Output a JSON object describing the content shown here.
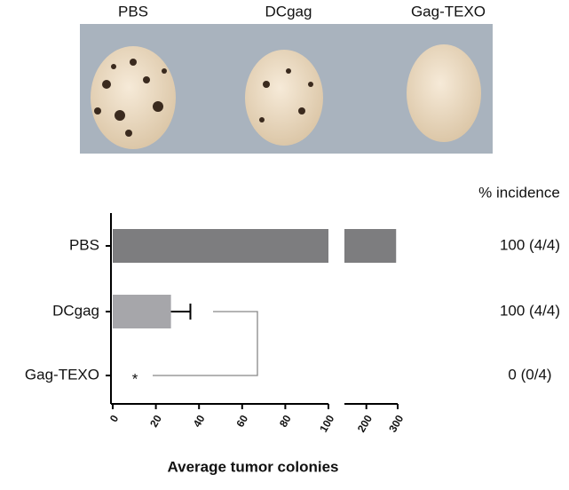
{
  "image_labels": [
    "PBS",
    "DCgag",
    "Gag-TEXO"
  ],
  "chart_data": {
    "type": "bar",
    "orientation": "horizontal",
    "categories": [
      "PBS",
      "DCgag",
      "Gag-TEXO"
    ],
    "values": [
      295,
      27,
      0
    ],
    "errors": [
      null,
      9,
      null
    ],
    "colors": [
      "#7d7d7f",
      "#a6a6aa",
      "#a6a6aa"
    ],
    "xlabel": "Average tumor colonies",
    "xlim": [
      0,
      100
    ],
    "xticks": [
      0,
      20,
      40,
      60,
      80,
      100
    ],
    "x2lim": [
      130,
      300
    ],
    "x2ticks": [
      200,
      300
    ],
    "annotation": "*",
    "right_header": "% incidence",
    "right_labels": [
      "100 (4/4)",
      "100 (4/4)",
      "0 (0/4)"
    ]
  }
}
